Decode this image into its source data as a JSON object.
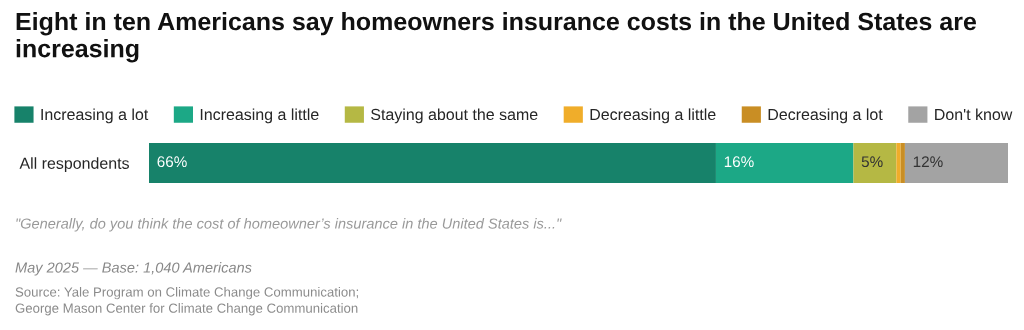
{
  "chart_data": {
    "type": "bar",
    "orientation": "horizontal",
    "stacked": true,
    "title": "Eight in ten Americans say homeowners insurance costs in the United States are increasing",
    "categories": [
      "All respondents"
    ],
    "series": [
      {
        "name": "Increasing a lot",
        "color": "#17826a",
        "values": [
          66
        ],
        "value_labels": [
          "66%"
        ]
      },
      {
        "name": "Increasing a little",
        "color": "#1ca886",
        "values": [
          16
        ],
        "value_labels": [
          "16%"
        ]
      },
      {
        "name": "Staying about the same",
        "color": "#b5b844",
        "values": [
          5
        ],
        "value_labels": [
          "5%"
        ]
      },
      {
        "name": "Decreasing a little",
        "color": "#f0ad2a",
        "values": [
          0.5
        ],
        "value_labels": [
          null
        ]
      },
      {
        "name": "Decreasing a lot",
        "color": "#c98e24",
        "values": [
          0.5
        ],
        "value_labels": [
          null
        ]
      },
      {
        "name": "Don't know",
        "color": "#a3a3a3",
        "values": [
          12
        ],
        "value_labels": [
          "12%"
        ]
      }
    ],
    "xlim": [
      0,
      100
    ],
    "tick_labels": "y",
    "grid": false,
    "legend": "top",
    "annotations": [
      "\"Generally, do you think the cost of homeowner’s insurance in the United States is...\"",
      "May 2025 — Base: 1,040 Americans",
      "Source: Yale Program on Climate Change Communication;\nGeorge Mason Center for Climate Change Communication"
    ]
  }
}
